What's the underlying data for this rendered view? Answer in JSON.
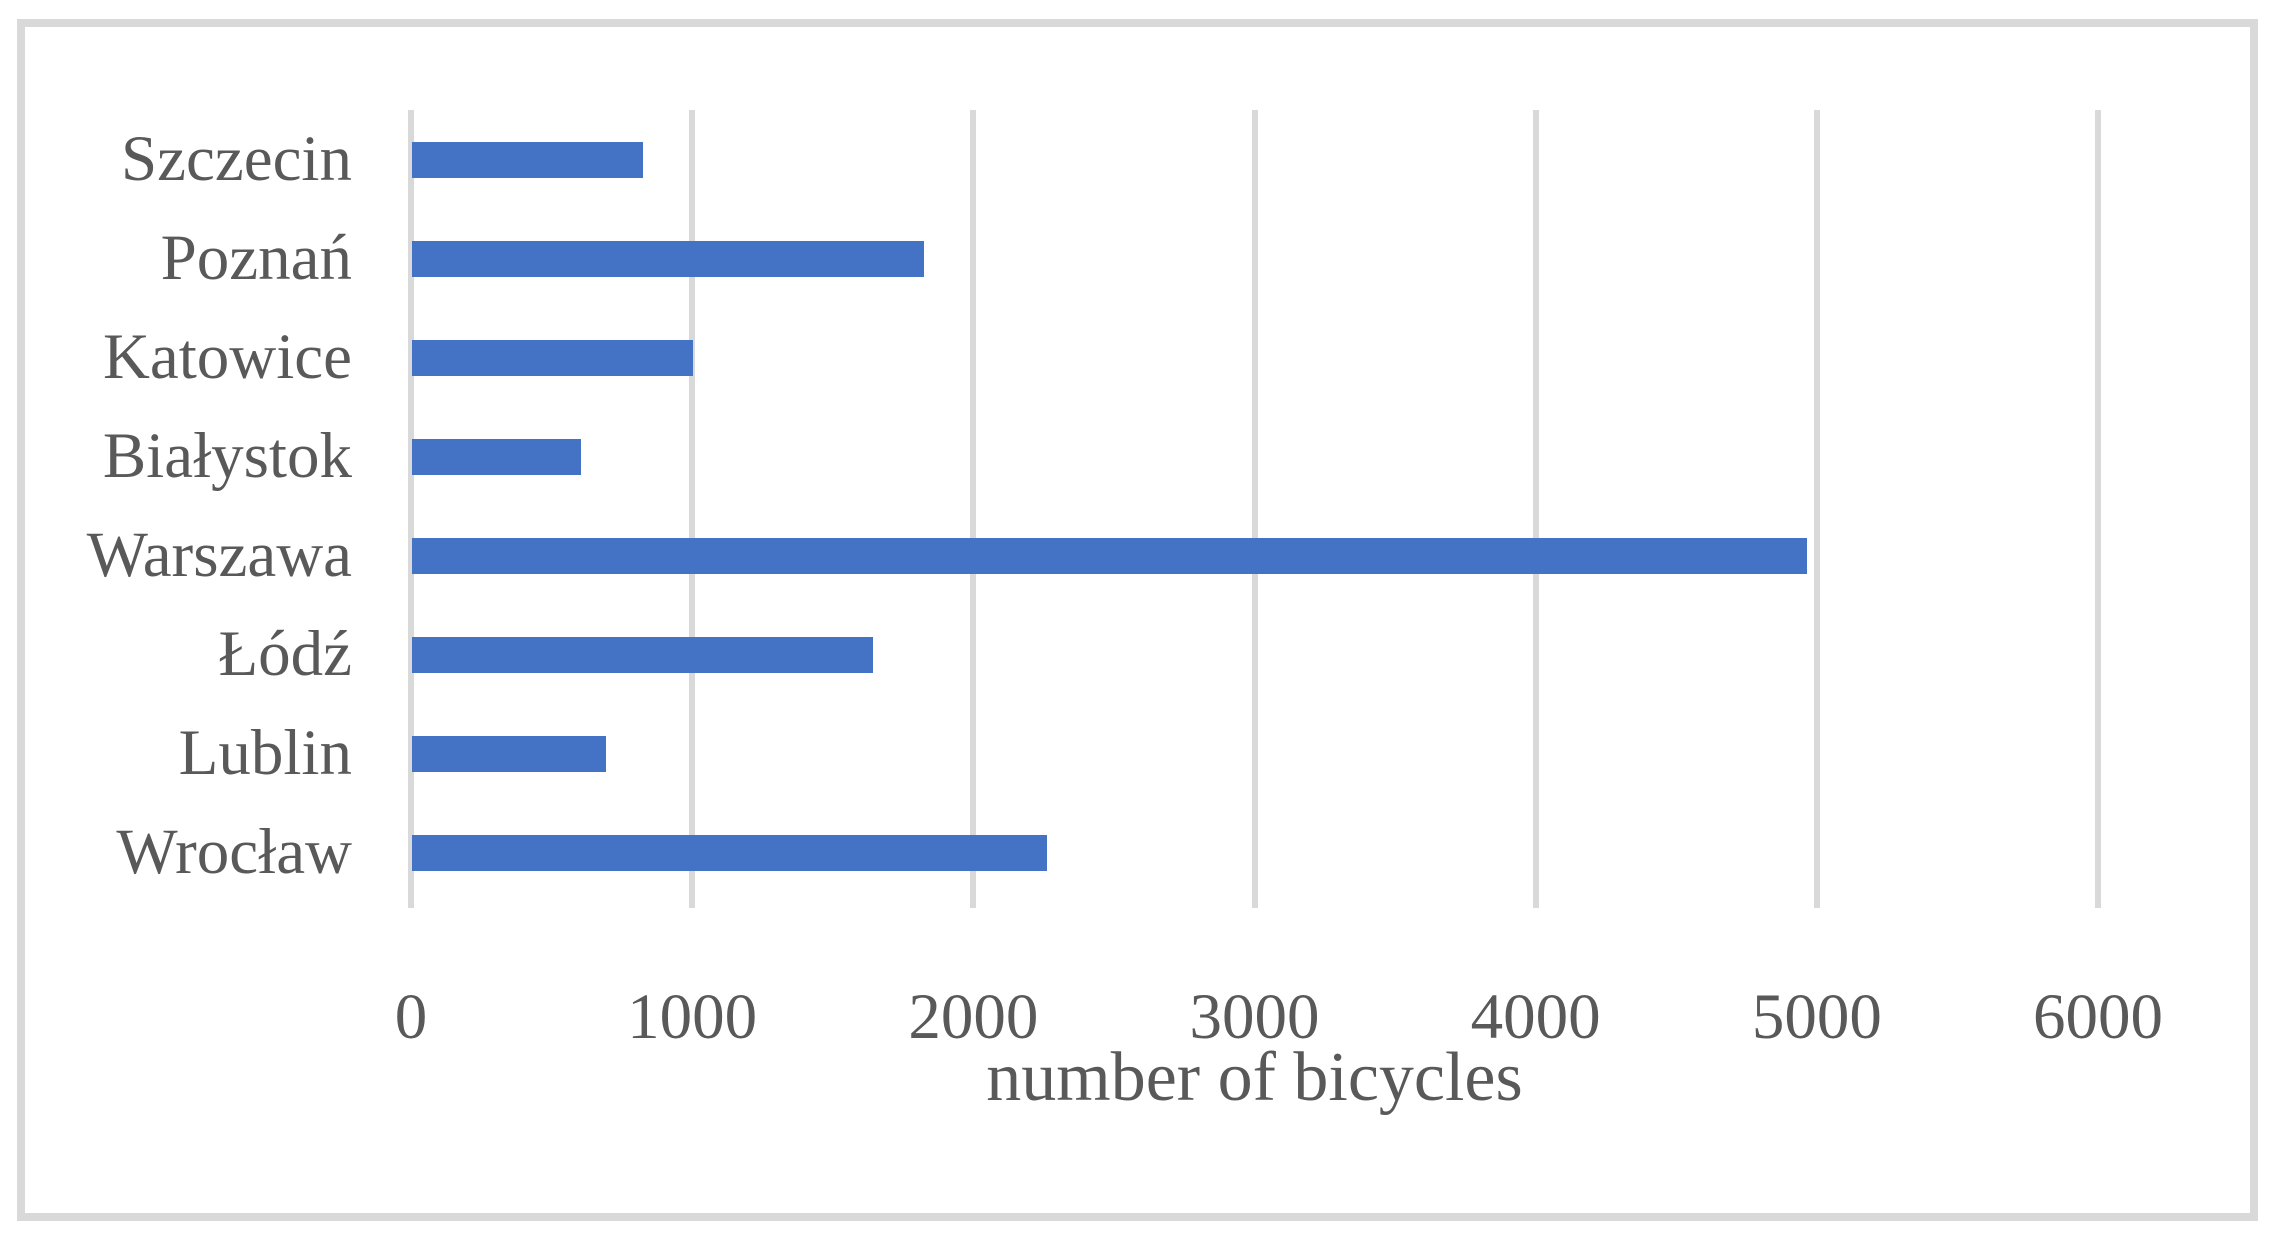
{
  "chart_data": {
    "type": "bar",
    "orientation": "horizontal",
    "title": "",
    "xlabel": "number of bicycles",
    "ylabel": "",
    "categories": [
      "Szczecin",
      "Poznań",
      "Katowice",
      "Białystok",
      "Warszawa",
      "Łódź",
      "Lublin",
      "Wrocław"
    ],
    "values": [
      820,
      1820,
      1000,
      600,
      4960,
      1640,
      690,
      2260
    ],
    "x_ticks": [
      0,
      1000,
      2000,
      3000,
      4000,
      5000,
      6000
    ],
    "xlim": [
      0,
      6000
    ],
    "legend": "none",
    "grid": "vertical-only",
    "bar_color": "#4472C4",
    "gridline_color": "#D9D9D9",
    "border_color": "#D9D9D9",
    "text_color": "#595959",
    "background_color": "#FFFFFF"
  }
}
